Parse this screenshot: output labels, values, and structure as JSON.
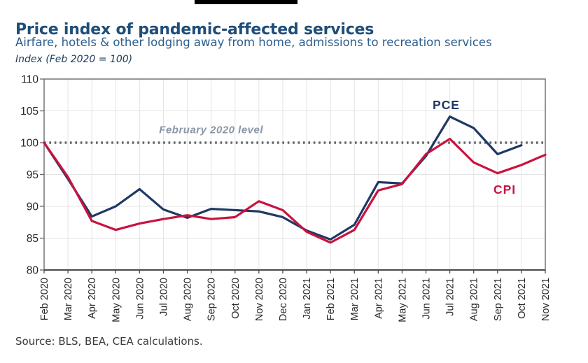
{
  "header": {
    "title": "Price index of pandemic-affected services",
    "subtitle": "Airfare, hotels & other lodging away from home, admissions to recreation services",
    "unit_note": "Index (Feb 2020 = 100)"
  },
  "footer": {
    "source": "Source: BLS, BEA, CEA calculations."
  },
  "palette": {
    "title_color": "#1f4e79",
    "subtitle_color": "#2a5d8f",
    "pce_color": "#1f3864",
    "cpi_color": "#c8133e",
    "reference_color": "#5b6570",
    "reference_label_color": "#8a97a6"
  },
  "chart_data": {
    "type": "line",
    "title": "Price index of pandemic-affected services",
    "xlabel": "",
    "ylabel": "Index (Feb 2020 = 100)",
    "grid": true,
    "legend_position": "inline-annotations",
    "ylim": [
      80,
      110
    ],
    "yticks": [
      80,
      85,
      90,
      95,
      100,
      105,
      110
    ],
    "categories": [
      "Feb 2020",
      "Mar 2020",
      "Apr 2020",
      "May 2020",
      "Jun 2020",
      "Jul 2020",
      "Aug 2020",
      "Sep 2020",
      "Oct 2020",
      "Nov 2020",
      "Dec 2020",
      "Jan 2021",
      "Feb 2021",
      "Mar 2021",
      "Apr 2021",
      "May 2021",
      "Jun 2021",
      "Jul 2021",
      "Aug 2021",
      "Sep 2021",
      "Oct 2021",
      "Nov 2021"
    ],
    "series": [
      {
        "name": "PCE",
        "color": "#1f3864",
        "values": [
          100,
          94.3,
          88.4,
          90.0,
          92.7,
          89.5,
          88.2,
          89.6,
          89.4,
          89.2,
          88.3,
          86.2,
          84.8,
          87.1,
          93.8,
          93.6,
          97.9,
          104.1,
          102.3,
          98.2,
          99.6,
          null
        ]
      },
      {
        "name": "CPI",
        "color": "#c8133e",
        "values": [
          100,
          94.6,
          87.7,
          86.3,
          87.3,
          88.0,
          88.6,
          88.0,
          88.3,
          90.8,
          89.4,
          86.0,
          84.3,
          86.3,
          92.5,
          93.5,
          98.2,
          100.6,
          96.9,
          95.2,
          96.5,
          98.1
        ]
      }
    ],
    "reference_line": {
      "value": 100,
      "label": "February 2020 level",
      "label_x_index": 7.0,
      "label_value": 101.5,
      "color": "#5b6570",
      "label_color": "#8a97a6"
    },
    "annotations": [
      {
        "text": "PCE",
        "x_index": 16.85,
        "value": 105.3,
        "color": "#1f3864"
      },
      {
        "text": "CPI",
        "x_index": 19.3,
        "value": 92.0,
        "color": "#c8133e"
      }
    ],
    "style": {
      "grid_color": "#e4e4e4",
      "axis_color": "#6a6a6a",
      "bottom_axis_color": "#4a4a4a",
      "tick_label_color": "#262626"
    }
  }
}
